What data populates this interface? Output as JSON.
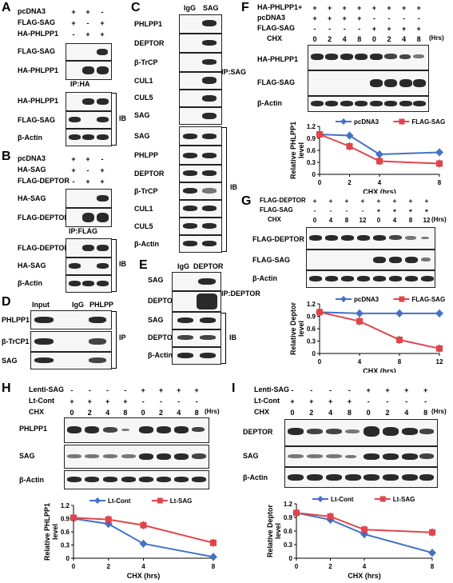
{
  "panels": {
    "A": {
      "label": "A",
      "rows": [
        {
          "name": "pcDNA3",
          "signs": [
            "+",
            "+",
            "-"
          ]
        },
        {
          "name": "FLAG-SAG",
          "signs": [
            "+",
            "-",
            "+"
          ]
        },
        {
          "name": "HA-PHLPP1",
          "signs": [
            "-",
            "+",
            "+"
          ]
        }
      ],
      "ip_blots": [
        "FLAG-SAG",
        "HA-PHLPP1"
      ],
      "ip_label": "IP:HA",
      "ib_blots": [
        "HA-PHLPP1",
        "FLAG-SAG",
        "β-Actin"
      ],
      "ib_label": "IB"
    },
    "B": {
      "label": "B",
      "rows": [
        {
          "name": "pcDNA3",
          "signs": [
            "+",
            "+",
            "-"
          ]
        },
        {
          "name": "HA-SAG",
          "signs": [
            "+",
            "-",
            "+"
          ]
        },
        {
          "name": "FLAG-DEPTOR",
          "signs": [
            "-",
            "+",
            "+"
          ]
        }
      ],
      "ip_blots": [
        "HA-SAG",
        "FLAG-DEPTOR"
      ],
      "ip_label": "IP:FLAG",
      "ib_blots": [
        "FLAG-DEPTOR",
        "HA-SAG",
        "β-Actin"
      ],
      "ib_label": "IB"
    },
    "C": {
      "label": "C",
      "cols": [
        "IgG",
        "SAG"
      ],
      "ip_blots": [
        "PHLPP1",
        "DEPTOR",
        "β-TrCP",
        "CUL1",
        "CUL5",
        "SAG"
      ],
      "ip_label": "IP:SAG",
      "ib_blots": [
        "SAG",
        "PHLPP",
        "DEPTOR",
        "β-TrCP",
        "CUL1",
        "CUL5",
        "β-Actin"
      ],
      "ib_label": "IB"
    },
    "D": {
      "label": "D",
      "cols": [
        "Input",
        "IgG",
        "PHLPP"
      ],
      "blots": [
        "PHLPP1",
        "β-TrCP1",
        "SAG"
      ],
      "ip_label": "IP"
    },
    "E": {
      "label": "E",
      "cols": [
        "IgG",
        "DEPTOR"
      ],
      "ip_blots": [
        "SAG",
        "DEPTOR"
      ],
      "ip_label": "IP:DEPTOR",
      "ib_blots": [
        "SAG",
        "DEPTOR",
        "β-Actin"
      ],
      "ib_label": "IB"
    },
    "F": {
      "label": "F",
      "rows": [
        {
          "name": "HA-PHLPP1+",
          "signs": [
            "+",
            "+",
            "+",
            "+",
            "+",
            "+",
            "+",
            "+"
          ]
        },
        {
          "name": "pcDNA3",
          "signs": [
            "+",
            "+",
            "+",
            "+",
            "-",
            "-",
            "-",
            "-"
          ]
        },
        {
          "name": "FLAG-SAG",
          "signs": [
            "-",
            "-",
            "-",
            "-",
            "+",
            "+",
            "+",
            "+"
          ]
        }
      ],
      "chx_label": "CHX",
      "chx_values": [
        "0",
        "2",
        "4",
        "8",
        "0",
        "2",
        "4",
        "8"
      ],
      "hrs": "(Hrs)",
      "blots": [
        "HA-PHLPP1",
        "FLAG-SAG",
        "β-Actin"
      ]
    },
    "G": {
      "label": "G",
      "rows": [
        {
          "name": "FLAG-DEPTOR",
          "signs": [
            "+",
            "+",
            "+",
            "+",
            "+",
            "+",
            "+",
            "+"
          ]
        },
        {
          "name": "FLAG-SAG",
          "signs": [
            "-",
            "-",
            "-",
            "-",
            "+",
            "+",
            "+",
            "+"
          ]
        }
      ],
      "chx_label": "CHX",
      "chx_values": [
        "0",
        "4",
        "8",
        "12",
        "0",
        "4",
        "8",
        "12"
      ],
      "hrs": "(Hrs)",
      "blots": [
        "FLAG-DEPTOR",
        "FLAG-SAG",
        "β-Actin"
      ]
    },
    "H": {
      "label": "H",
      "rows": [
        {
          "name": "Lenti-SAG",
          "signs": [
            "-",
            "-",
            "-",
            "-",
            "+",
            "+",
            "+",
            "+"
          ]
        },
        {
          "name": "Lt-Cont",
          "signs": [
            "+",
            "+",
            "+",
            "+",
            "-",
            "-",
            "-",
            "-"
          ]
        }
      ],
      "chx_label": "CHX",
      "chx_values": [
        "0",
        "2",
        "4",
        "8",
        "0",
        "2",
        "4",
        "8"
      ],
      "hrs": "(Hrs)",
      "blots": [
        "PHLPP1",
        "SAG",
        "β-Actin"
      ]
    },
    "I": {
      "label": "I",
      "rows": [
        {
          "name": "Lenti-SAG",
          "signs": [
            "-",
            "-",
            "-",
            "-",
            "+",
            "+",
            "+",
            "+"
          ]
        },
        {
          "name": "Lt-Cont",
          "signs": [
            "+",
            "+",
            "+",
            "+",
            "-",
            "-",
            "-",
            "-"
          ]
        }
      ],
      "chx_label": "CHX",
      "chx_values": [
        "0",
        "2",
        "4",
        "8",
        "0",
        "2",
        "4",
        "8"
      ],
      "hrs": "(Hrs)",
      "blots": [
        "DEPTOR",
        "SAG",
        "β-Actin"
      ]
    }
  },
  "chart_data": [
    {
      "id": "F",
      "type": "line",
      "xlabel": "CHX (hrs)",
      "ylabel": "Relative PHLPP1 level",
      "x": [
        0,
        2,
        4,
        8
      ],
      "xlim": [
        0,
        8
      ],
      "ylim": [
        0,
        1.2
      ],
      "yticks": [
        "0",
        "0.3",
        "0.6",
        "0.9",
        "1.2"
      ],
      "xticks": [
        "0",
        "2",
        "4",
        "8"
      ],
      "series": [
        {
          "name": "pcDNA3",
          "values": [
            1.0,
            0.97,
            0.5,
            0.55
          ],
          "color": "#4472c4",
          "marker": "diamond"
        },
        {
          "name": "FLAG-SAG",
          "values": [
            1.0,
            0.7,
            0.33,
            0.27
          ],
          "color": "#e0454a",
          "marker": "square"
        }
      ],
      "legend": "top"
    },
    {
      "id": "G",
      "type": "line",
      "xlabel": "CHX (hrs)",
      "ylabel": "Relative Deptor level",
      "x": [
        0,
        4,
        8,
        12
      ],
      "xlim": [
        0,
        12
      ],
      "ylim": [
        0,
        1.2
      ],
      "yticks": [
        "0",
        "0.3",
        "0.6",
        "0.9",
        "1.2"
      ],
      "xticks": [
        "0",
        "4",
        "8",
        "12"
      ],
      "series": [
        {
          "name": "pcDNA3",
          "values": [
            1.0,
            0.97,
            0.97,
            0.97
          ],
          "color": "#4472c4",
          "marker": "diamond"
        },
        {
          "name": "FLAG-SAG",
          "values": [
            1.0,
            0.78,
            0.33,
            0.12
          ],
          "color": "#e0454a",
          "marker": "square"
        }
      ],
      "legend": "top"
    },
    {
      "id": "H",
      "type": "line",
      "xlabel": "CHX (hrs)",
      "ylabel": "Relative PHLPP1 level",
      "x": [
        0,
        2,
        4,
        8
      ],
      "xlim": [
        0,
        8
      ],
      "ylim": [
        0,
        1.2
      ],
      "yticks": [
        "0",
        "0.3",
        "0.6",
        "0.9",
        "1.2"
      ],
      "xticks": [
        "0",
        "2",
        "4",
        "8"
      ],
      "series": [
        {
          "name": "Lt-Cont",
          "values": [
            0.9,
            0.78,
            0.33,
            0.03
          ],
          "color": "#4472c4",
          "marker": "diamond"
        },
        {
          "name": "Lt-SAG",
          "values": [
            0.92,
            0.88,
            0.75,
            0.35
          ],
          "color": "#e0454a",
          "marker": "square"
        }
      ],
      "legend": "top"
    },
    {
      "id": "I",
      "type": "line",
      "xlabel": "CHX (hrs)",
      "ylabel": "Relative Deptor level",
      "x": [
        0,
        2,
        4,
        8
      ],
      "xlim": [
        0,
        8
      ],
      "ylim": [
        0,
        1.2
      ],
      "yticks": [
        "0",
        "0.3",
        "0.6",
        "0.9",
        "1.2"
      ],
      "xticks": [
        "0",
        "2",
        "4",
        "8"
      ],
      "series": [
        {
          "name": "Lt-Cont",
          "values": [
            1.0,
            0.85,
            0.53,
            0.12
          ],
          "color": "#4472c4",
          "marker": "diamond"
        },
        {
          "name": "Lt-SAG",
          "values": [
            1.0,
            0.92,
            0.63,
            0.57
          ],
          "color": "#e0454a",
          "marker": "square"
        }
      ],
      "legend": "top"
    }
  ]
}
